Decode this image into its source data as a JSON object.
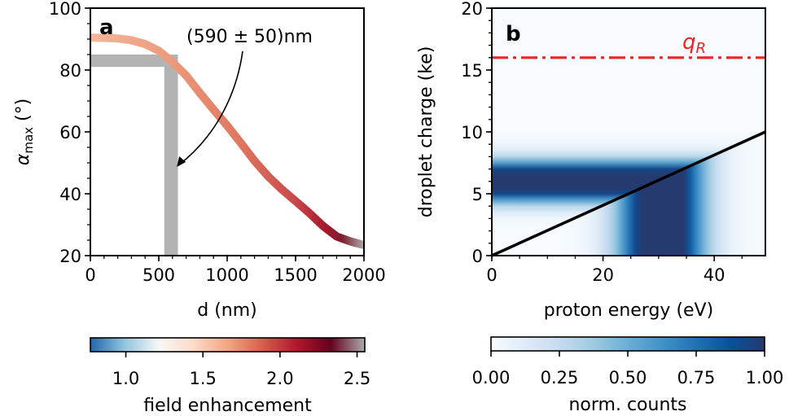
{
  "chart_data": [
    {
      "panel": "a",
      "type": "line",
      "xlabel": "d (nm)",
      "ylabel_main": "α",
      "ylabel_sub": "max",
      "ylabel_unit": " (°)",
      "xlim": [
        0,
        2000
      ],
      "ylim": [
        20,
        100
      ],
      "xticks": [
        0,
        500,
        1000,
        1500,
        2000
      ],
      "yticks": [
        20,
        40,
        60,
        80,
        100
      ],
      "grid": false,
      "series": [
        {
          "x": [
            0,
            200,
            300,
            400,
            500,
            590,
            700,
            800,
            900,
            1000,
            1100,
            1200,
            1300,
            1400,
            1500,
            1600,
            1700,
            1800,
            1900,
            2000
          ],
          "y": [
            90.5,
            90.2,
            89.6,
            88.4,
            86.2,
            83,
            78.2,
            72.6,
            67.2,
            62,
            56.4,
            50.6,
            45.6,
            41.4,
            37.6,
            33.8,
            29.6,
            26.2,
            24.6,
            23.4
          ],
          "color_by": "field enhancement"
        }
      ],
      "highlight": {
        "d_nm": 590,
        "d_err_nm": 50,
        "alpha_range": [
          81,
          85
        ],
        "color": "#b3b3b3"
      },
      "annotation": {
        "text": "(590 ± 50)nm",
        "points_to": [
          620,
          50
        ]
      },
      "colorbar": {
        "label": "field enhancement",
        "range": [
          0.77,
          2.55
        ],
        "ticks": [
          "1.0",
          "1.5",
          "2.0",
          "2.5"
        ],
        "tick_values": [
          1.0,
          1.5,
          2.0,
          2.5
        ],
        "colormap": [
          "#2166ac",
          "#92c5de",
          "#f7f7f7",
          "#fddbc7",
          "#f4a582",
          "#d6604d",
          "#b2182b",
          "#67001f",
          "#aaaaaa"
        ]
      }
    },
    {
      "panel": "b",
      "type": "heatmap",
      "xlabel": "proton energy (eV)",
      "ylabel": "droplet charge (ke)",
      "xlim": [
        0,
        49.2
      ],
      "ylim": [
        0,
        20
      ],
      "xticks": [
        0,
        20,
        40
      ],
      "yticks": [
        0,
        5,
        10,
        15,
        20
      ],
      "grid": false,
      "charge_band_center_ke": 6,
      "energy_band_center_ev": 30.5,
      "line": {
        "x": [
          0,
          49.2
        ],
        "y": [
          0,
          10
        ],
        "color": "#000000"
      },
      "reference_line": {
        "label_main": "q",
        "label_sub": "R",
        "y": 16,
        "style": "dashdot",
        "color": "#ee2222"
      },
      "colorbar": {
        "label": "norm. counts",
        "range": [
          0,
          1
        ],
        "ticks": [
          "0.00",
          "0.25",
          "0.50",
          "0.75",
          "1.00"
        ],
        "tick_values": [
          0,
          0.25,
          0.5,
          0.75,
          1
        ],
        "colormap": [
          "#f7fbff",
          "#deebf7",
          "#c6dbef",
          "#9ecae1",
          "#6baed6",
          "#4292c6",
          "#2171b5",
          "#08519c",
          "#253a6e"
        ]
      }
    }
  ]
}
